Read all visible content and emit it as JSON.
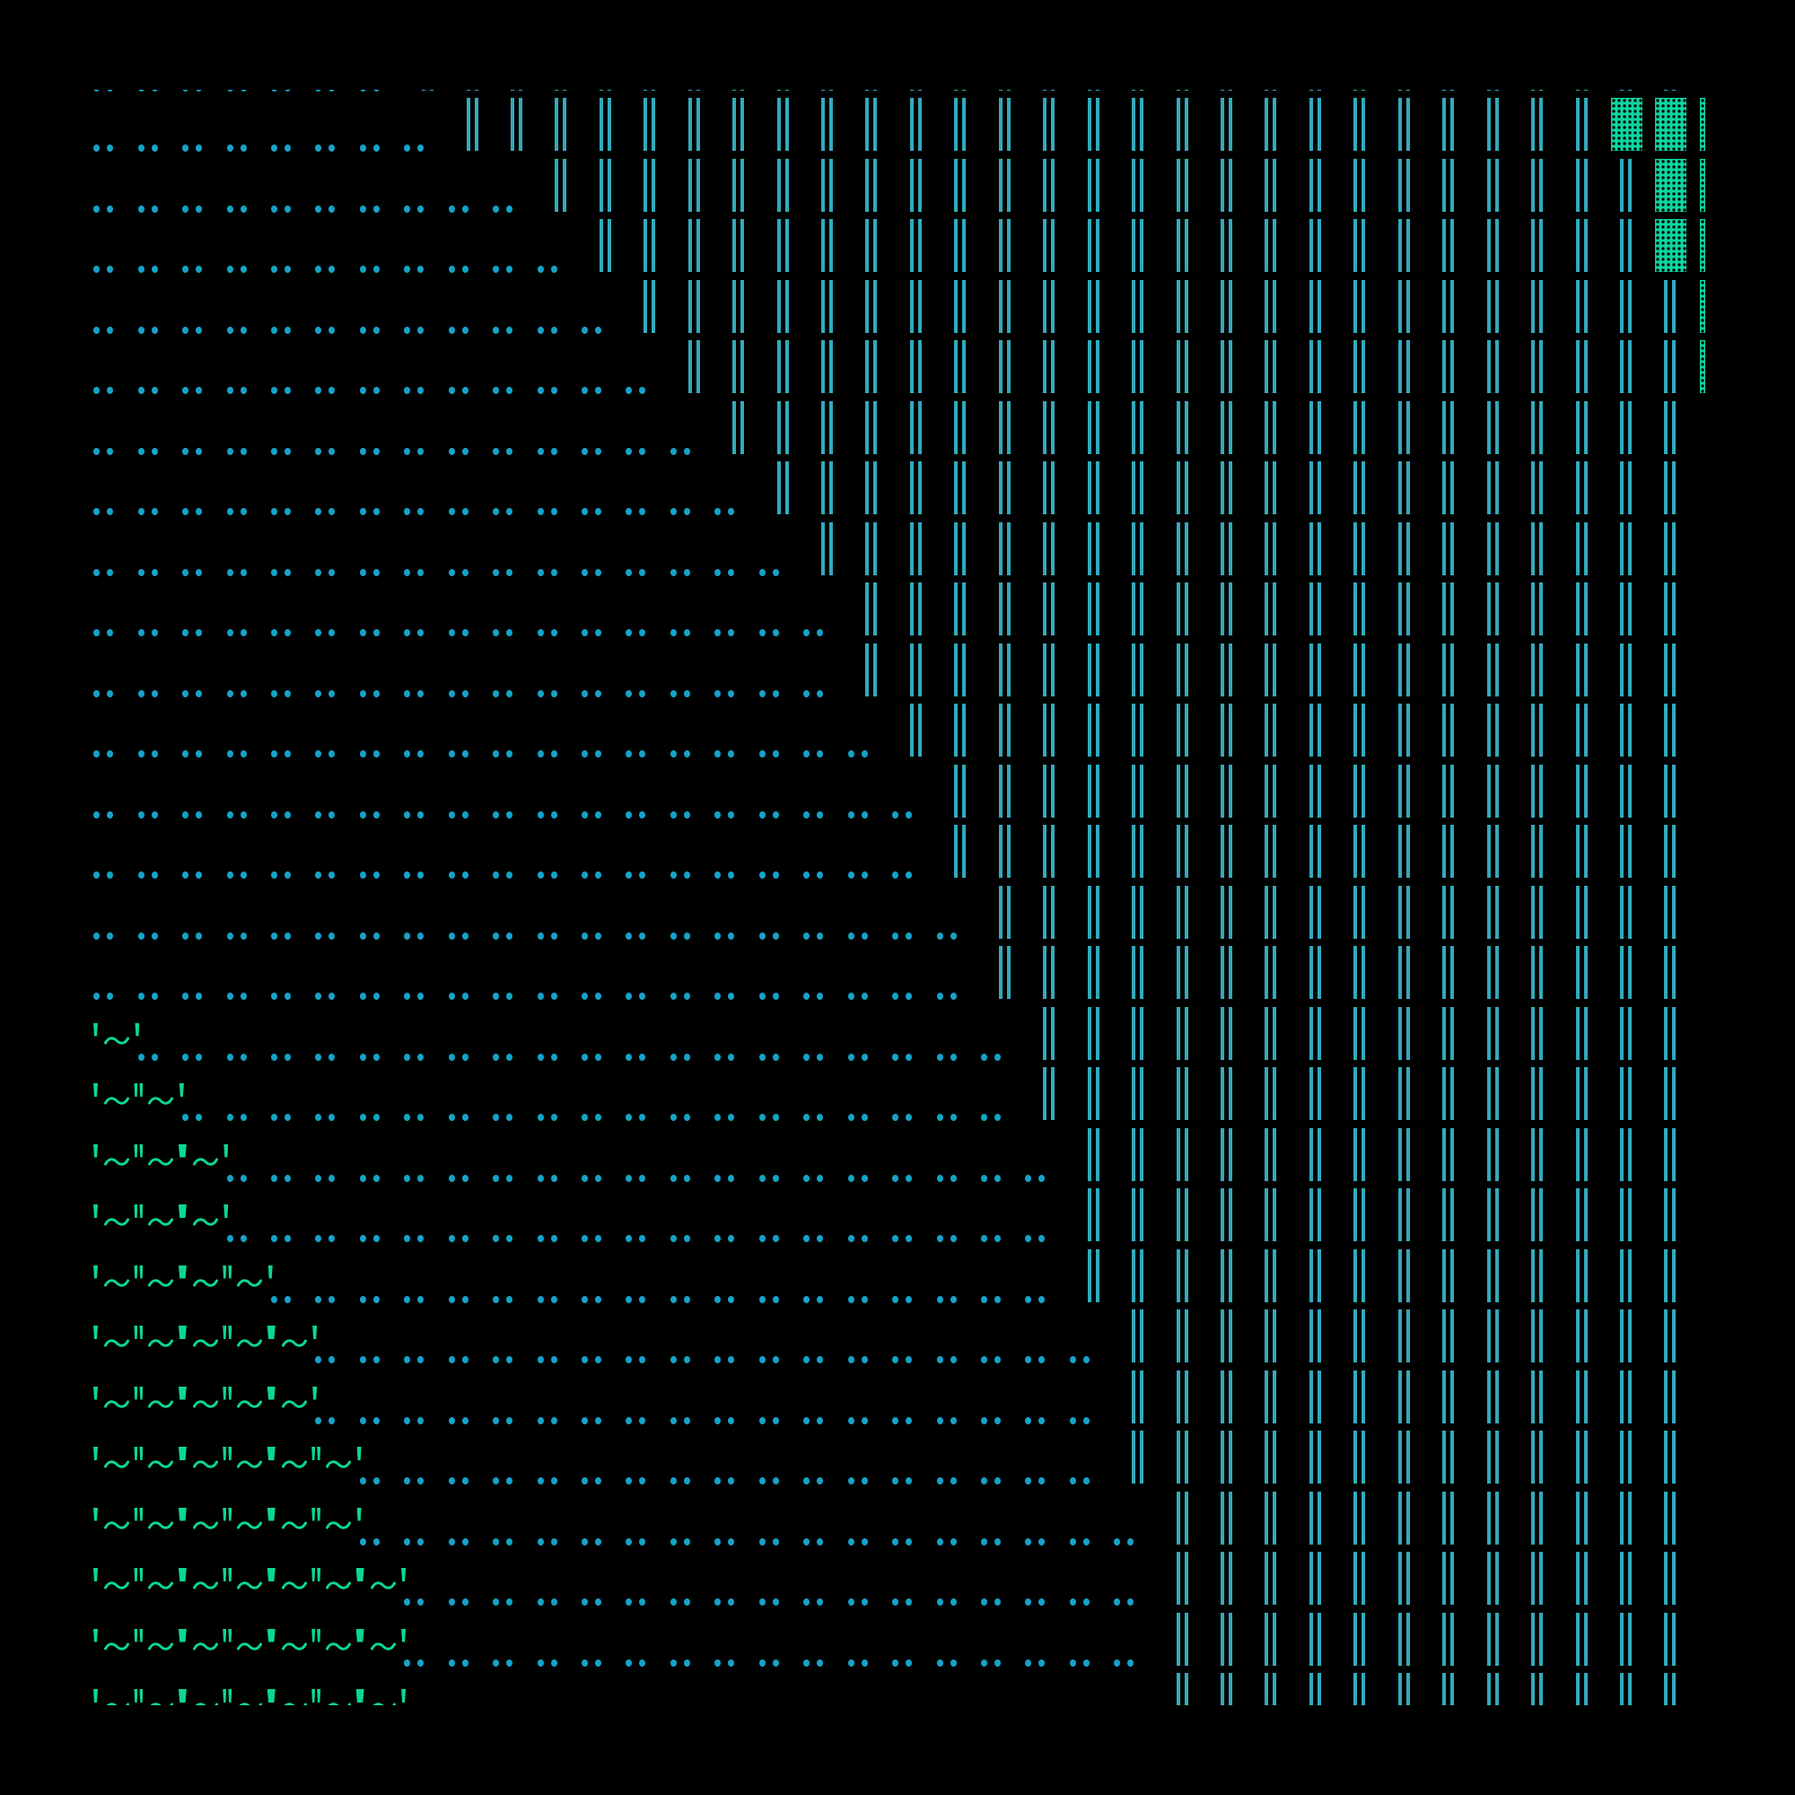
{
  "colors": {
    "background": "#000000",
    "dots": "#15A3C8",
    "bars": "#32AABB",
    "wave": "#0CD794",
    "block": "#0CD6A0"
  },
  "grid": {
    "columns": 36,
    "rows": [
      {
        "wave_cells": 0,
        "dot_cells": 7,
        "block_columns": [],
        "edge_block": false
      },
      {
        "wave_cells": 0,
        "dot_cells": 8,
        "block_columns": [
          34,
          35
        ],
        "edge_block": true
      },
      {
        "wave_cells": 0,
        "dot_cells": 10,
        "block_columns": [
          35
        ],
        "edge_block": true
      },
      {
        "wave_cells": 0,
        "dot_cells": 11,
        "block_columns": [
          35
        ],
        "edge_block": true
      },
      {
        "wave_cells": 0,
        "dot_cells": 12,
        "block_columns": [],
        "edge_block": true
      },
      {
        "wave_cells": 0,
        "dot_cells": 13,
        "block_columns": [],
        "edge_block": true
      },
      {
        "wave_cells": 0,
        "dot_cells": 14,
        "block_columns": [],
        "edge_block": false
      },
      {
        "wave_cells": 0,
        "dot_cells": 15,
        "block_columns": [],
        "edge_block": false
      },
      {
        "wave_cells": 0,
        "dot_cells": 16,
        "block_columns": [],
        "edge_block": false
      },
      {
        "wave_cells": 0,
        "dot_cells": 17,
        "block_columns": [],
        "edge_block": false
      },
      {
        "wave_cells": 0,
        "dot_cells": 17,
        "block_columns": [],
        "edge_block": false
      },
      {
        "wave_cells": 0,
        "dot_cells": 18,
        "block_columns": [],
        "edge_block": false
      },
      {
        "wave_cells": 0,
        "dot_cells": 19,
        "block_columns": [],
        "edge_block": false
      },
      {
        "wave_cells": 0,
        "dot_cells": 19,
        "block_columns": [],
        "edge_block": false
      },
      {
        "wave_cells": 0,
        "dot_cells": 20,
        "block_columns": [],
        "edge_block": false
      },
      {
        "wave_cells": 0,
        "dot_cells": 20,
        "block_columns": [],
        "edge_block": false
      },
      {
        "wave_cells": 1,
        "dot_cells": 20,
        "block_columns": [],
        "edge_block": false
      },
      {
        "wave_cells": 2,
        "dot_cells": 19,
        "block_columns": [],
        "edge_block": false
      },
      {
        "wave_cells": 3,
        "dot_cells": 19,
        "block_columns": [],
        "edge_block": false
      },
      {
        "wave_cells": 3,
        "dot_cells": 19,
        "block_columns": [],
        "edge_block": false
      },
      {
        "wave_cells": 4,
        "dot_cells": 18,
        "block_columns": [],
        "edge_block": false
      },
      {
        "wave_cells": 5,
        "dot_cells": 18,
        "block_columns": [],
        "edge_block": false
      },
      {
        "wave_cells": 5,
        "dot_cells": 18,
        "block_columns": [],
        "edge_block": false
      },
      {
        "wave_cells": 6,
        "dot_cells": 17,
        "block_columns": [],
        "edge_block": false
      },
      {
        "wave_cells": 6,
        "dot_cells": 18,
        "block_columns": [],
        "edge_block": false
      },
      {
        "wave_cells": 7,
        "dot_cells": 17,
        "block_columns": [],
        "edge_block": false
      },
      {
        "wave_cells": 7,
        "dot_cells": 17,
        "block_columns": [],
        "edge_block": false
      },
      {
        "wave_cells": 7,
        "dot_cells": 17,
        "block_columns": [],
        "edge_block": false
      }
    ]
  }
}
